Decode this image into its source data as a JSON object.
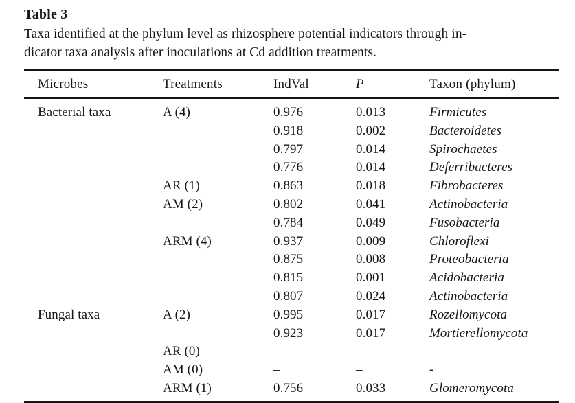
{
  "page": {
    "background": "#ffffff",
    "text_color": "#161616"
  },
  "header": {
    "title": "Table 3",
    "caption": "Taxa identified at the phylum level as rhizosphere potential indicators through in-\ndicator taxa analysis after inoculations at Cd addition treatments."
  },
  "table": {
    "columns": [
      "Microbes",
      "Treatments",
      "IndVal",
      "P",
      "Taxon (phylum)"
    ],
    "rows": [
      {
        "microbes": "Bacterial taxa",
        "treatments": "A (4)",
        "indval": "0.976",
        "p": "0.013",
        "taxon": "Firmicutes"
      },
      {
        "microbes": "",
        "treatments": "",
        "indval": "0.918",
        "p": "0.002",
        "taxon": "Bacteroidetes"
      },
      {
        "microbes": "",
        "treatments": "",
        "indval": "0.797",
        "p": "0.014",
        "taxon": "Spirochaetes"
      },
      {
        "microbes": "",
        "treatments": "",
        "indval": "0.776",
        "p": "0.014",
        "taxon": "Deferribacteres"
      },
      {
        "microbes": "",
        "treatments": "AR (1)",
        "indval": "0.863",
        "p": "0.018",
        "taxon": "Fibrobacteres"
      },
      {
        "microbes": "",
        "treatments": "AM (2)",
        "indval": "0.802",
        "p": "0.041",
        "taxon": "Actinobacteria"
      },
      {
        "microbes": "",
        "treatments": "",
        "indval": "0.784",
        "p": "0.049",
        "taxon": "Fusobacteria"
      },
      {
        "microbes": "",
        "treatments": "ARM (4)",
        "indval": "0.937",
        "p": "0.009",
        "taxon": "Chloroflexi"
      },
      {
        "microbes": "",
        "treatments": "",
        "indval": "0.875",
        "p": "0.008",
        "taxon": "Proteobacteria"
      },
      {
        "microbes": "",
        "treatments": "",
        "indval": "0.815",
        "p": "0.001",
        "taxon": "Acidobacteria"
      },
      {
        "microbes": "",
        "treatments": "",
        "indval": "0.807",
        "p": "0.024",
        "taxon": "Actinobacteria"
      },
      {
        "microbes": "Fungal taxa",
        "treatments": "A (2)",
        "indval": "0.995",
        "p": "0.017",
        "taxon": "Rozellomycota"
      },
      {
        "microbes": "",
        "treatments": "",
        "indval": "0.923",
        "p": "0.017",
        "taxon": "Mortierellomycota"
      },
      {
        "microbes": "",
        "treatments": "AR (0)",
        "indval": "–",
        "p": "–",
        "taxon": "–"
      },
      {
        "microbes": "",
        "treatments": "AM (0)",
        "indval": "–",
        "p": "–",
        "taxon": "-"
      },
      {
        "microbes": "",
        "treatments": "ARM (1)",
        "indval": "0.756",
        "p": "0.033",
        "taxon": "Glomeromycota"
      }
    ]
  }
}
